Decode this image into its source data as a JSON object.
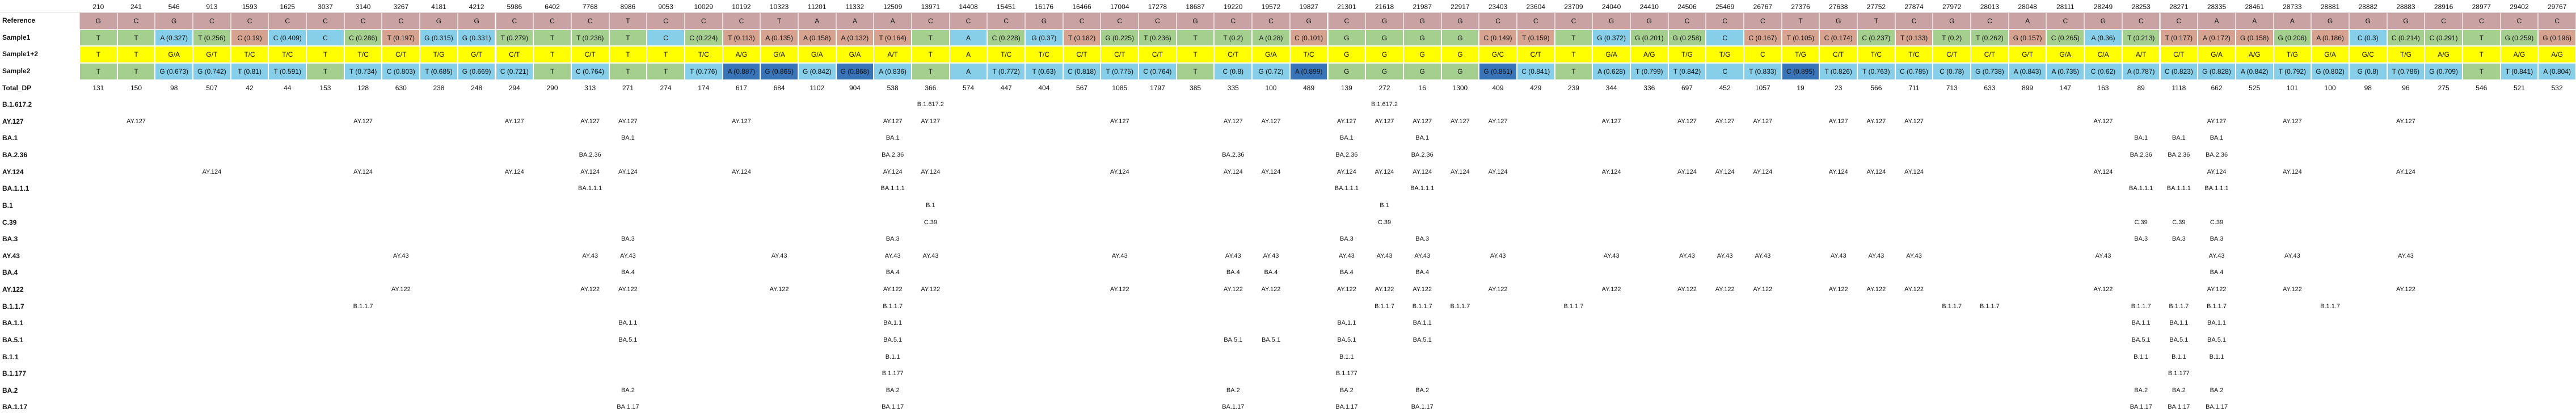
{
  "header_positions": [
    "210",
    "241",
    "546",
    "913",
    "1593",
    "1625",
    "3037",
    "3140",
    "3267",
    "4181",
    "4212",
    "5986",
    "6402",
    "7768",
    "8986",
    "9053",
    "10029",
    "10192",
    "10323",
    "11201",
    "11332",
    "12509",
    "13971",
    "14408",
    "15451",
    "16176",
    "16466",
    "17004",
    "17278",
    "18687",
    "19220",
    "19572",
    "19827",
    "21301",
    "21618",
    "21987",
    "22917",
    "23403",
    "23604",
    "23709",
    "24040",
    "24410",
    "24506",
    "25469",
    "26767",
    "27376",
    "27638",
    "27752",
    "27874",
    "27972",
    "28013",
    "28048",
    "28111",
    "28249",
    "28253",
    "28271",
    "28335",
    "28461",
    "28733",
    "28881",
    "28882",
    "28883",
    "28916",
    "28977",
    "29402",
    "29767"
  ],
  "rows": [
    {
      "label": "Reference",
      "type": "ref",
      "cells": [
        "G",
        "C",
        "G",
        "C",
        "C",
        "C",
        "C",
        "C",
        "C",
        "G",
        "G",
        "C",
        "C",
        "C",
        "T",
        "C",
        "C",
        "C",
        "T",
        "A",
        "A",
        "A",
        "C",
        "C",
        "C",
        "G",
        "C",
        "C",
        "C",
        "G",
        "C",
        "C",
        "G",
        "C",
        "G",
        "G",
        "G",
        "C",
        "C",
        "C",
        "G",
        "G",
        "C",
        "C",
        "C",
        "T",
        "G",
        "T",
        "C",
        "G",
        "C",
        "A",
        "C",
        "G",
        "C",
        "C",
        "A",
        "A",
        "A",
        "G",
        "G",
        "G",
        "C",
        "C",
        "C",
        "C"
      ]
    },
    {
      "label": "Sample1",
      "type": "seq",
      "cells": [
        "T",
        "T",
        "A (0.327)",
        "T (0.256)",
        "C (0.19)",
        "C (0.409)",
        "C",
        "C (0.286)",
        "T (0.197)",
        "G (0.315)",
        "G (0.331)",
        "T (0.279)",
        "T",
        "T (0.236)",
        "T",
        "C",
        "C (0.224)",
        "T (0.113)",
        "A (0.135)",
        "A (0.158)",
        "A (0.132)",
        "T (0.164)",
        "T",
        "A",
        "C (0.228)",
        "G (0.37)",
        "T (0.182)",
        "G (0.225)",
        "T (0.236)",
        "T",
        "T (0.2)",
        "A (0.28)",
        "C (0.101)",
        "G",
        "G",
        "G",
        "G",
        "C (0.149)",
        "T (0.159)",
        "T",
        "G (0.372)",
        "G (0.201)",
        "G (0.258)",
        "C",
        "C (0.167)",
        "T (0.105)",
        "C (0.174)",
        "C (0.237)",
        "T (0.133)",
        "T (0.2)",
        "T (0.262)",
        "G (0.157)",
        "C (0.265)",
        "A (0.36)",
        "T (0.213)",
        "T (0.177)",
        "A (0.172)",
        "G (0.158)",
        "G (0.206)",
        "A (0.186)",
        "C (0.3)",
        "C (0.214)",
        "C (0.291)",
        "T",
        "G (0.259)",
        "G (0.196)"
      ]
    },
    {
      "label": "Sample1+2",
      "type": "seq",
      "cells": [
        "T",
        "T",
        "G/A",
        "G/T",
        "T/C",
        "T/C",
        "T",
        "T/C",
        "C/T",
        "T/G",
        "G/T",
        "C/T",
        "T",
        "C/T",
        "T",
        "T",
        "T/C",
        "A/G",
        "G/A",
        "G/A",
        "G/A",
        "A/T",
        "T",
        "A",
        "T/C",
        "T/C",
        "C/T",
        "C/T",
        "C/T",
        "T",
        "C/T",
        "G/A",
        "T/C",
        "G",
        "G",
        "G",
        "G",
        "G/C",
        "C/T",
        "T",
        "G/A",
        "A/G",
        "T/G",
        "T/G",
        "C",
        "T/G",
        "C/T",
        "T/C",
        "T/C",
        "C/T",
        "C/T",
        "G/T",
        "G/A",
        "C/A",
        "A/T",
        "C/T",
        "G/A",
        "A/G",
        "T/G",
        "G/A",
        "G/C",
        "T/G",
        "A/G",
        "T",
        "A/G",
        "A/G"
      ]
    },
    {
      "label": "Sample2",
      "type": "seq",
      "cells": [
        "T",
        "T",
        "G (0.673)",
        "G (0.742)",
        "T (0.81)",
        "T (0.591)",
        "T",
        "T (0.734)",
        "C (0.803)",
        "T (0.685)",
        "G (0.669)",
        "C (0.721)",
        "T",
        "C (0.764)",
        "T",
        "T",
        "T (0.776)",
        "A (0.887)",
        "G (0.865)",
        "G (0.842)",
        "G (0.868)",
        "A (0.836)",
        "T",
        "A",
        "T (0.772)",
        "T (0.63)",
        "C (0.818)",
        "T (0.775)",
        "C (0.764)",
        "T",
        "C (0.8)",
        "G (0.72)",
        "A (0.899)",
        "G",
        "G",
        "G",
        "G",
        "G (0.851)",
        "C (0.841)",
        "T",
        "A (0.628)",
        "T (0.799)",
        "T (0.842)",
        "C",
        "T (0.833)",
        "C (0.895)",
        "T (0.826)",
        "T (0.763)",
        "C (0.785)",
        "C (0.78)",
        "G (0.738)",
        "A (0.843)",
        "A (0.735)",
        "C (0.62)",
        "A (0.787)",
        "C (0.823)",
        "G (0.828)",
        "A (0.842)",
        "T (0.792)",
        "G (0.802)",
        "G (0.8)",
        "T (0.786)",
        "G (0.709)",
        "T",
        "T (0.841)",
        "A (0.804)"
      ]
    },
    {
      "label": "Total_DP",
      "type": "dp",
      "cells": [
        "131",
        "150",
        "98",
        "507",
        "42",
        "44",
        "153",
        "128",
        "630",
        "238",
        "248",
        "294",
        "290",
        "313",
        "271",
        "274",
        "174",
        "617",
        "684",
        "1102",
        "904",
        "538",
        "366",
        "574",
        "447",
        "404",
        "567",
        "1085",
        "1797",
        "385",
        "335",
        "100",
        "489",
        "139",
        "272",
        "16",
        "1300",
        "409",
        "429",
        "239",
        "344",
        "336",
        "697",
        "452",
        "1057",
        "19",
        "23",
        "566",
        "711",
        "713",
        "633",
        "899",
        "147",
        "163",
        "89",
        "1118",
        "662",
        "525",
        "101",
        "100",
        "98",
        "96",
        "275",
        "546",
        "521",
        "532"
      ]
    },
    {
      "label": "B.1.617.2",
      "type": "lin",
      "cells": {
        "22": "B.1.617.2",
        "34": "B.1.617.2"
      }
    },
    {
      "label": "AY.127",
      "type": "lin",
      "cells": {
        "1": "AY.127",
        "7": "AY.127",
        "11": "AY.127",
        "13": "AY.127",
        "14": "AY.127",
        "17": "AY.127",
        "21": "AY.127",
        "22": "AY.127",
        "27": "AY.127",
        "30": "AY.127",
        "31": "AY.127",
        "33": "AY.127",
        "34": "AY.127",
        "35": "AY.127",
        "36": "AY.127",
        "37": "AY.127",
        "40": "AY.127",
        "42": "AY.127",
        "43": "AY.127",
        "44": "AY.127",
        "46": "AY.127",
        "47": "AY.127",
        "48": "AY.127",
        "53": "AY.127",
        "56": "AY.127",
        "58": "AY.127",
        "61": "AY.127"
      }
    },
    {
      "label": "BA.1",
      "type": "lin",
      "cells": {
        "14": "BA.1",
        "21": "BA.1",
        "33": "BA.1",
        "35": "BA.1",
        "54": "BA.1",
        "55": "BA.1",
        "56": "BA.1"
      }
    },
    {
      "label": "BA.2.36",
      "type": "lin",
      "cells": {
        "13": "BA.2.36",
        "21": "BA.2.36",
        "30": "BA.2.36",
        "33": "BA.2.36",
        "35": "BA.2.36",
        "54": "BA.2.36",
        "55": "BA.2.36",
        "56": "BA.2.36"
      }
    },
    {
      "label": "AY.124",
      "type": "lin",
      "cells": {
        "3": "AY.124",
        "7": "AY.124",
        "11": "AY.124",
        "13": "AY.124",
        "14": "AY.124",
        "17": "AY.124",
        "21": "AY.124",
        "22": "AY.124",
        "27": "AY.124",
        "30": "AY.124",
        "31": "AY.124",
        "33": "AY.124",
        "34": "AY.124",
        "35": "AY.124",
        "36": "AY.124",
        "37": "AY.124",
        "40": "AY.124",
        "42": "AY.124",
        "43": "AY.124",
        "44": "AY.124",
        "46": "AY.124",
        "47": "AY.124",
        "48": "AY.124",
        "53": "AY.124",
        "56": "AY.124",
        "58": "AY.124",
        "61": "AY.124"
      }
    },
    {
      "label": "BA.1.1.1",
      "type": "lin",
      "cells": {
        "13": "BA.1.1.1",
        "21": "BA.1.1.1",
        "33": "BA.1.1.1",
        "35": "BA.1.1.1",
        "54": "BA.1.1.1",
        "55": "BA.1.1.1",
        "56": "BA.1.1.1"
      }
    },
    {
      "label": "B.1",
      "type": "lin",
      "cells": {
        "22": "B.1",
        "34": "B.1"
      }
    },
    {
      "label": "C.39",
      "type": "lin",
      "cells": {
        "22": "C.39",
        "34": "C.39",
        "54": "C.39",
        "55": "C.39",
        "56": "C.39"
      }
    },
    {
      "label": "BA.3",
      "type": "lin",
      "cells": {
        "14": "BA.3",
        "21": "BA.3",
        "33": "BA.3",
        "35": "BA.3",
        "54": "BA.3",
        "55": "BA.3",
        "56": "BA.3"
      }
    },
    {
      "label": "AY.43",
      "type": "lin",
      "cells": {
        "8": "AY.43",
        "13": "AY.43",
        "14": "AY.43",
        "18": "AY.43",
        "21": "AY.43",
        "22": "AY.43",
        "27": "AY.43",
        "30": "AY.43",
        "31": "AY.43",
        "33": "AY.43",
        "34": "AY.43",
        "35": "AY.43",
        "37": "AY.43",
        "40": "AY.43",
        "42": "AY.43",
        "43": "AY.43",
        "44": "AY.43",
        "46": "AY.43",
        "47": "AY.43",
        "48": "AY.43",
        "53": "AY.43",
        "56": "AY.43",
        "58": "AY.43",
        "61": "AY.43"
      }
    },
    {
      "label": "BA.4",
      "type": "lin",
      "cells": {
        "14": "BA.4",
        "21": "BA.4",
        "30": "BA.4",
        "31": "BA.4",
        "33": "BA.4",
        "35": "BA.4",
        "56": "BA.4"
      }
    },
    {
      "label": "AY.122",
      "type": "lin",
      "cells": {
        "8": "AY.122",
        "13": "AY.122",
        "14": "AY.122",
        "18": "AY.122",
        "21": "AY.122",
        "22": "AY.122",
        "27": "AY.122",
        "30": "AY.122",
        "31": "AY.122",
        "33": "AY.122",
        "34": "AY.122",
        "35": "AY.122",
        "37": "AY.122",
        "40": "AY.122",
        "42": "AY.122",
        "43": "AY.122",
        "44": "AY.122",
        "46": "AY.122",
        "47": "AY.122",
        "48": "AY.122",
        "53": "AY.122",
        "56": "AY.122",
        "58": "AY.122",
        "61": "AY.122"
      }
    },
    {
      "label": "B.1.1.7",
      "type": "lin",
      "cells": {
        "7": "B.1.1.7",
        "21": "B.1.1.7",
        "34": "B.1.1.7",
        "35": "B.1.1.7",
        "36": "B.1.1.7",
        "39": "B.1.1.7",
        "49": "B.1.1.7",
        "50": "B.1.1.7",
        "54": "B.1.1.7",
        "55": "B.1.1.7",
        "56": "B.1.1.7",
        "59": "B.1.1.7"
      }
    },
    {
      "label": "BA.1.1",
      "type": "lin",
      "cells": {
        "14": "BA.1.1",
        "21": "BA.1.1",
        "33": "BA.1.1",
        "35": "BA.1.1",
        "54": "BA.1.1",
        "55": "BA.1.1",
        "56": "BA.1.1"
      }
    },
    {
      "label": "BA.5.1",
      "type": "lin",
      "cells": {
        "14": "BA.5.1",
        "21": "BA.5.1",
        "30": "BA.5.1",
        "31": "BA.5.1",
        "33": "BA.5.1",
        "35": "BA.5.1",
        "54": "BA.5.1",
        "55": "BA.5.1",
        "56": "BA.5.1"
      }
    },
    {
      "label": "B.1.1",
      "type": "lin",
      "cells": {
        "21": "B.1.1",
        "33": "B.1.1",
        "54": "B.1.1",
        "55": "B.1.1",
        "56": "B.1.1"
      }
    },
    {
      "label": "B.1.177",
      "type": "lin",
      "cells": {
        "21": "B.1.177",
        "33": "B.1.177",
        "55": "B.1.177"
      }
    },
    {
      "label": "BA.2",
      "type": "lin",
      "cells": {
        "14": "BA.2",
        "21": "BA.2",
        "30": "BA.2",
        "33": "BA.2",
        "35": "BA.2",
        "54": "BA.2",
        "55": "BA.2",
        "56": "BA.2"
      }
    },
    {
      "label": "BA.1.17",
      "type": "lin",
      "cells": {
        "14": "BA.1.17",
        "21": "BA.1.17",
        "30": "BA.1.17",
        "33": "BA.1.17",
        "35": "BA.1.17",
        "54": "BA.1.17",
        "55": "BA.1.17",
        "56": "BA.1.17"
      }
    }
  ],
  "colors": {
    "ref": "#c9a3a3",
    "seq_default": "#87cee9",
    "mixed": "#ffff00",
    "sample_blue_dark": "#3a74b8",
    "sample_salmon": "#d6a390",
    "sample_green": "#a4cf8f",
    "sample_red": "#d9534f",
    "hdr_line": "#dddddd"
  }
}
